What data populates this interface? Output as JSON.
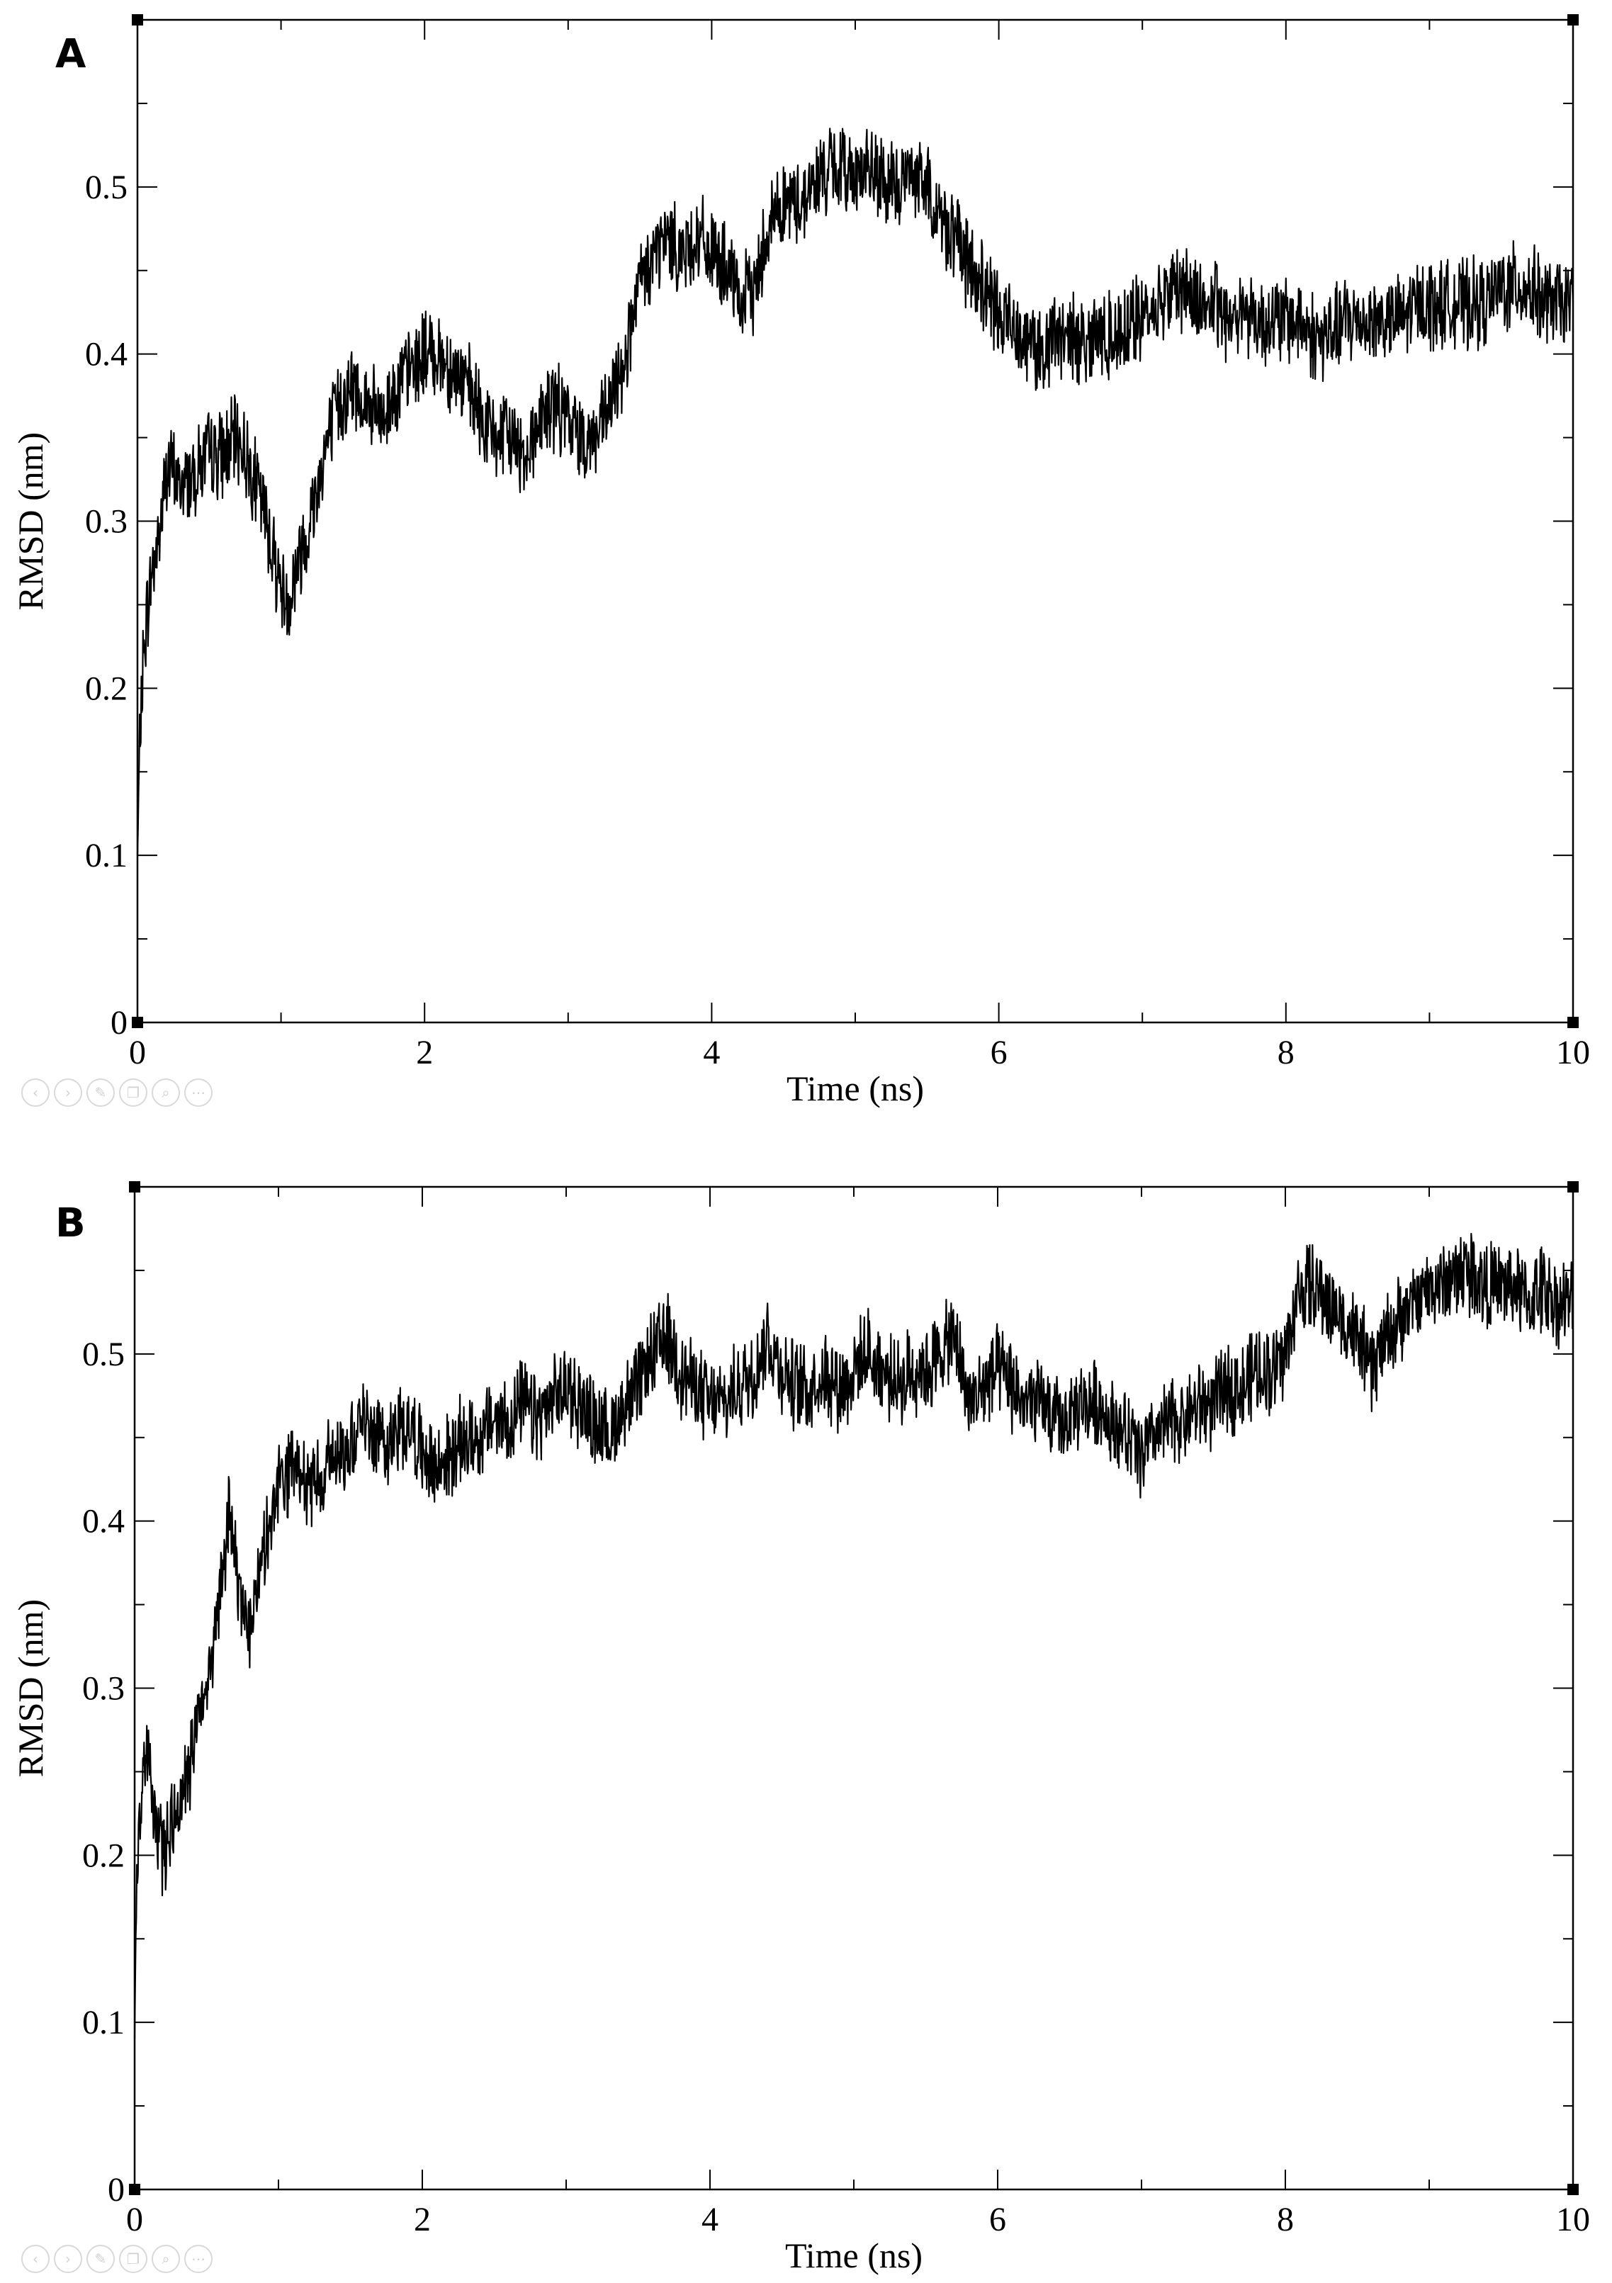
{
  "chart_data": [
    {
      "type": "line",
      "panel_label": "A",
      "xlabel": "Time (ns)",
      "ylabel": "RMSD (nm)",
      "xlim": [
        0,
        10
      ],
      "ylim": [
        0,
        0.6
      ],
      "xticks": [
        0,
        2,
        4,
        6,
        8,
        10
      ],
      "xtick_labels": [
        "0",
        "2",
        "4",
        "6",
        "8",
        "10"
      ],
      "yticks": [
        0,
        0.1,
        0.2,
        0.3,
        0.4,
        0.5
      ],
      "ytick_labels": [
        "0",
        "0.1",
        "0.2",
        "0.3",
        "0.4",
        "0.5"
      ],
      "grid": false,
      "series": [
        {
          "color": "#000000",
          "x": [
            0,
            0.02,
            0.05,
            0.1,
            0.15,
            0.2,
            0.25,
            0.3,
            0.4,
            0.5,
            0.6,
            0.7,
            0.8,
            0.9,
            1.0,
            1.05,
            1.1,
            1.2,
            1.3,
            1.4,
            1.5,
            1.6,
            1.7,
            1.8,
            1.9,
            2.0,
            2.1,
            2.2,
            2.3,
            2.4,
            2.5,
            2.6,
            2.7,
            2.8,
            2.9,
            3.0,
            3.1,
            3.2,
            3.3,
            3.4,
            3.5,
            3.6,
            3.7,
            3.8,
            3.9,
            4.0,
            4.1,
            4.2,
            4.3,
            4.4,
            4.5,
            4.6,
            4.7,
            4.8,
            4.9,
            5.0,
            5.1,
            5.2,
            5.3,
            5.4,
            5.5,
            5.6,
            5.7,
            5.8,
            5.9,
            6.0,
            6.1,
            6.2,
            6.3,
            6.4,
            6.5,
            6.6,
            6.7,
            6.8,
            6.9,
            7.0,
            7.1,
            7.2,
            7.3,
            7.4,
            7.5,
            7.6,
            7.7,
            7.8,
            7.9,
            8.0,
            8.1,
            8.2,
            8.3,
            8.4,
            8.5,
            8.6,
            8.7,
            8.8,
            8.9,
            9.0,
            9.1,
            9.2,
            9.3,
            9.4,
            9.5,
            9.6,
            9.7,
            9.8,
            9.9,
            10.0
          ],
          "y": [
            0.1,
            0.18,
            0.23,
            0.27,
            0.29,
            0.33,
            0.33,
            0.32,
            0.33,
            0.34,
            0.34,
            0.35,
            0.33,
            0.3,
            0.26,
            0.25,
            0.27,
            0.3,
            0.34,
            0.37,
            0.38,
            0.37,
            0.36,
            0.38,
            0.39,
            0.4,
            0.4,
            0.39,
            0.38,
            0.36,
            0.35,
            0.35,
            0.34,
            0.36,
            0.37,
            0.36,
            0.35,
            0.35,
            0.37,
            0.4,
            0.44,
            0.46,
            0.47,
            0.46,
            0.47,
            0.46,
            0.45,
            0.43,
            0.44,
            0.48,
            0.49,
            0.49,
            0.5,
            0.51,
            0.51,
            0.51,
            0.51,
            0.5,
            0.5,
            0.51,
            0.5,
            0.48,
            0.47,
            0.45,
            0.44,
            0.42,
            0.42,
            0.41,
            0.4,
            0.41,
            0.41,
            0.41,
            0.41,
            0.41,
            0.42,
            0.42,
            0.43,
            0.44,
            0.44,
            0.43,
            0.43,
            0.42,
            0.43,
            0.42,
            0.42,
            0.42,
            0.42,
            0.41,
            0.41,
            0.42,
            0.42,
            0.42,
            0.42,
            0.42,
            0.43,
            0.43,
            0.43,
            0.43,
            0.43,
            0.43,
            0.44,
            0.44,
            0.44,
            0.43,
            0.43,
            0.43
          ]
        }
      ]
    },
    {
      "type": "line",
      "panel_label": "B",
      "xlabel": "Time (ns)",
      "ylabel": "RMSD (nm)",
      "xlim": [
        0,
        10
      ],
      "ylim": [
        0,
        0.6
      ],
      "xticks": [
        0,
        2,
        4,
        6,
        8,
        10
      ],
      "xtick_labels": [
        "0",
        "2",
        "4",
        "6",
        "8",
        "10"
      ],
      "yticks": [
        0,
        0.1,
        0.2,
        0.3,
        0.4,
        0.5
      ],
      "ytick_labels": [
        "0",
        "0.1",
        "0.2",
        "0.3",
        "0.4",
        "0.5"
      ],
      "grid": false,
      "series": [
        {
          "color": "#000000",
          "x": [
            0,
            0.02,
            0.05,
            0.1,
            0.15,
            0.2,
            0.25,
            0.3,
            0.35,
            0.4,
            0.45,
            0.5,
            0.55,
            0.6,
            0.65,
            0.7,
            0.75,
            0.8,
            0.85,
            0.9,
            1.0,
            1.1,
            1.2,
            1.3,
            1.4,
            1.5,
            1.6,
            1.7,
            1.8,
            1.9,
            2.0,
            2.1,
            2.2,
            2.3,
            2.4,
            2.5,
            2.6,
            2.7,
            2.8,
            2.9,
            3.0,
            3.1,
            3.2,
            3.3,
            3.4,
            3.5,
            3.6,
            3.7,
            3.8,
            3.9,
            4.0,
            4.1,
            4.2,
            4.3,
            4.4,
            4.5,
            4.6,
            4.7,
            4.8,
            4.9,
            5.0,
            5.1,
            5.2,
            5.3,
            5.4,
            5.5,
            5.6,
            5.7,
            5.8,
            5.9,
            6.0,
            6.1,
            6.2,
            6.3,
            6.4,
            6.5,
            6.6,
            6.7,
            6.8,
            6.9,
            7.0,
            7.1,
            7.2,
            7.3,
            7.4,
            7.5,
            7.6,
            7.7,
            7.8,
            7.9,
            8.0,
            8.1,
            8.2,
            8.3,
            8.4,
            8.5,
            8.6,
            8.7,
            8.8,
            8.9,
            9.0,
            9.1,
            9.2,
            9.3,
            9.4,
            9.5,
            9.6,
            9.7,
            9.8,
            9.9,
            10.0
          ],
          "y": [
            0.09,
            0.2,
            0.24,
            0.26,
            0.22,
            0.2,
            0.22,
            0.23,
            0.24,
            0.26,
            0.28,
            0.3,
            0.33,
            0.36,
            0.4,
            0.38,
            0.35,
            0.34,
            0.36,
            0.38,
            0.42,
            0.43,
            0.42,
            0.43,
            0.44,
            0.45,
            0.46,
            0.45,
            0.45,
            0.46,
            0.44,
            0.43,
            0.44,
            0.45,
            0.45,
            0.46,
            0.46,
            0.47,
            0.46,
            0.47,
            0.48,
            0.47,
            0.46,
            0.45,
            0.47,
            0.48,
            0.5,
            0.51,
            0.49,
            0.48,
            0.47,
            0.47,
            0.48,
            0.49,
            0.51,
            0.49,
            0.48,
            0.48,
            0.49,
            0.48,
            0.49,
            0.5,
            0.49,
            0.48,
            0.49,
            0.49,
            0.5,
            0.51,
            0.47,
            0.48,
            0.49,
            0.48,
            0.47,
            0.47,
            0.46,
            0.46,
            0.47,
            0.47,
            0.46,
            0.45,
            0.44,
            0.45,
            0.46,
            0.46,
            0.47,
            0.47,
            0.48,
            0.48,
            0.49,
            0.49,
            0.5,
            0.54,
            0.54,
            0.53,
            0.52,
            0.51,
            0.49,
            0.51,
            0.52,
            0.53,
            0.54,
            0.54,
            0.55,
            0.55,
            0.54,
            0.54,
            0.54,
            0.53,
            0.54,
            0.53,
            0.53
          ]
        }
      ]
    }
  ],
  "toolbar_icons": [
    "prev-icon",
    "next-icon",
    "edit-icon",
    "copy-icon",
    "zoom-icon",
    "more-icon"
  ]
}
